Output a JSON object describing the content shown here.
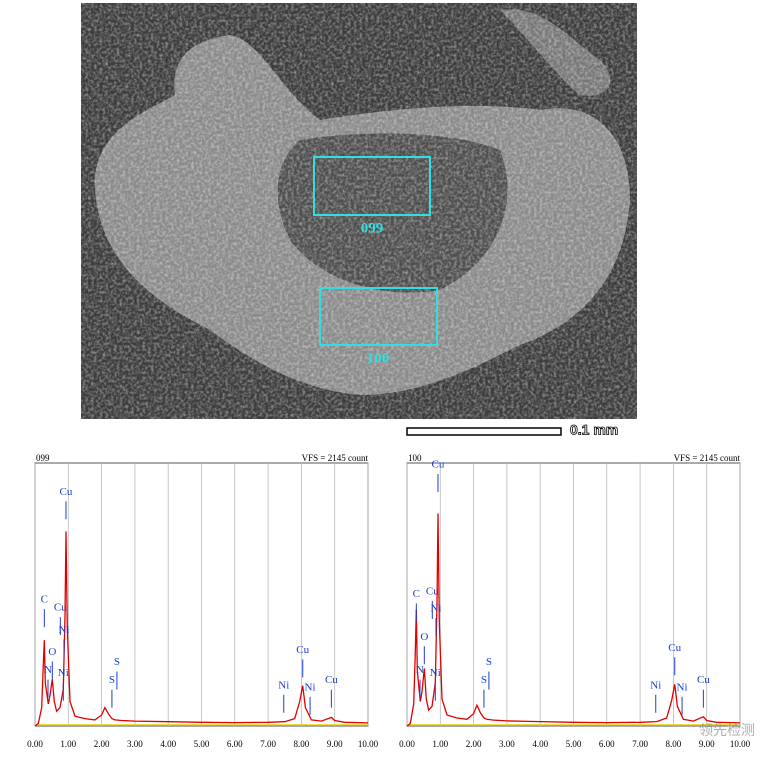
{
  "image": {
    "regions": [
      {
        "label": "099"
      },
      {
        "label": "100"
      }
    ],
    "scale_bar": "0.1 mm",
    "watermark": "领先检测"
  },
  "chart_data": [
    {
      "type": "line",
      "title": "099",
      "subtitle": "VFS = 2145 count",
      "color": "#e00000",
      "marker_color": "#1a3fd0",
      "x": [
        0.0,
        0.1,
        0.2,
        0.25,
        0.28,
        0.31,
        0.4,
        0.45,
        0.52,
        0.58,
        0.65,
        0.75,
        0.85,
        0.9,
        0.93,
        0.97,
        1.05,
        1.2,
        1.5,
        1.8,
        2.0,
        2.1,
        2.2,
        2.31,
        2.4,
        2.6,
        3.0,
        4.0,
        5.0,
        6.0,
        7.0,
        7.5,
        7.8,
        7.95,
        8.04,
        8.12,
        8.3,
        8.6,
        8.9,
        9.0,
        9.3,
        10.0
      ],
      "values": [
        0,
        20,
        150,
        500,
        700,
        350,
        180,
        250,
        380,
        200,
        120,
        150,
        300,
        900,
        1587,
        800,
        200,
        80,
        60,
        50,
        90,
        150,
        100,
        60,
        50,
        45,
        40,
        35,
        30,
        28,
        30,
        35,
        60,
        200,
        329,
        150,
        50,
        40,
        70,
        45,
        30,
        25
      ],
      "xlim": [
        0,
        10
      ],
      "ylim": [
        0,
        2145
      ],
      "grid": true,
      "xticks": [
        {
          "value": 0,
          "label": "0.00"
        },
        {
          "value": 1,
          "label": "1.00"
        },
        {
          "value": 2,
          "label": "2.00"
        },
        {
          "value": 3,
          "label": "3.00"
        },
        {
          "value": 4,
          "label": "4.00"
        },
        {
          "value": 5,
          "label": "5.00"
        },
        {
          "value": 6,
          "label": "6.00"
        },
        {
          "value": 7,
          "label": "7.00"
        },
        {
          "value": 8,
          "label": "8.00"
        },
        {
          "value": 9,
          "label": "9.00"
        },
        {
          "value": 10,
          "label": "10.00"
        }
      ],
      "markers": [
        {
          "label": "C",
          "x": 0.28,
          "y": 953
        },
        {
          "label": "N",
          "x": 0.39,
          "y": 378
        },
        {
          "label": "O",
          "x": 0.52,
          "y": 526
        },
        {
          "label": "Ni",
          "x": 0.85,
          "y": 353
        },
        {
          "label": "Cu",
          "x": 0.93,
          "y": 1833
        },
        {
          "label": "Cu",
          "x": 0.76,
          "y": 888
        },
        {
          "label": "Ni",
          "x": 0.87,
          "y": 707
        },
        {
          "label": "S",
          "x": 2.31,
          "y": 296
        },
        {
          "label": "S",
          "x": 2.46,
          "y": 444
        },
        {
          "label": "Ni",
          "x": 7.47,
          "y": 255
        },
        {
          "label": "Cu",
          "x": 8.04,
          "y": 543
        },
        {
          "label": "Ni",
          "x": 8.26,
          "y": 238
        },
        {
          "label": "Cu",
          "x": 8.9,
          "y": 296
        }
      ]
    },
    {
      "type": "line",
      "title": "100",
      "subtitle": "VFS = 2145 count",
      "color": "#e00000",
      "marker_color": "#1a3fd0",
      "x": [
        0.0,
        0.1,
        0.2,
        0.25,
        0.28,
        0.31,
        0.4,
        0.45,
        0.52,
        0.58,
        0.65,
        0.75,
        0.85,
        0.9,
        0.93,
        0.97,
        1.05,
        1.2,
        1.5,
        1.8,
        2.0,
        2.1,
        2.2,
        2.31,
        2.4,
        2.6,
        3.0,
        4.0,
        5.0,
        6.0,
        7.0,
        7.5,
        7.8,
        7.95,
        8.04,
        8.12,
        8.3,
        8.6,
        8.9,
        9.0,
        9.3,
        10.0
      ],
      "values": [
        0,
        20,
        180,
        600,
        950,
        450,
        200,
        280,
        470,
        220,
        130,
        160,
        350,
        1000,
        1733,
        850,
        220,
        90,
        65,
        55,
        100,
        170,
        110,
        65,
        55,
        48,
        42,
        36,
        30,
        28,
        30,
        36,
        65,
        210,
        340,
        160,
        55,
        40,
        75,
        45,
        30,
        25
      ],
      "xlim": [
        0,
        10
      ],
      "ylim": [
        0,
        2145
      ],
      "grid": true,
      "xticks": [
        {
          "value": 0,
          "label": "0.00"
        },
        {
          "value": 1,
          "label": "1.00"
        },
        {
          "value": 2,
          "label": "2.00"
        },
        {
          "value": 3,
          "label": "3.00"
        },
        {
          "value": 4,
          "label": "4.00"
        },
        {
          "value": 5,
          "label": "5.00"
        },
        {
          "value": 6,
          "label": "6.00"
        },
        {
          "value": 7,
          "label": "7.00"
        },
        {
          "value": 8,
          "label": "8.00"
        },
        {
          "value": 9,
          "label": "9.00"
        },
        {
          "value": 10,
          "label": "10.00"
        }
      ],
      "markers": [
        {
          "label": "C",
          "x": 0.28,
          "y": 1000
        },
        {
          "label": "N",
          "x": 0.39,
          "y": 378
        },
        {
          "label": "O",
          "x": 0.52,
          "y": 650
        },
        {
          "label": "Ni",
          "x": 0.85,
          "y": 353
        },
        {
          "label": "Cu",
          "x": 0.93,
          "y": 2055
        },
        {
          "label": "Cu",
          "x": 0.76,
          "y": 1020
        },
        {
          "label": "Ni",
          "x": 0.87,
          "y": 880
        },
        {
          "label": "S",
          "x": 2.31,
          "y": 296
        },
        {
          "label": "S",
          "x": 2.46,
          "y": 444
        },
        {
          "label": "Ni",
          "x": 7.47,
          "y": 255
        },
        {
          "label": "Cu",
          "x": 8.04,
          "y": 560
        },
        {
          "label": "Ni",
          "x": 8.26,
          "y": 238
        },
        {
          "label": "Cu",
          "x": 8.9,
          "y": 296
        }
      ]
    }
  ]
}
